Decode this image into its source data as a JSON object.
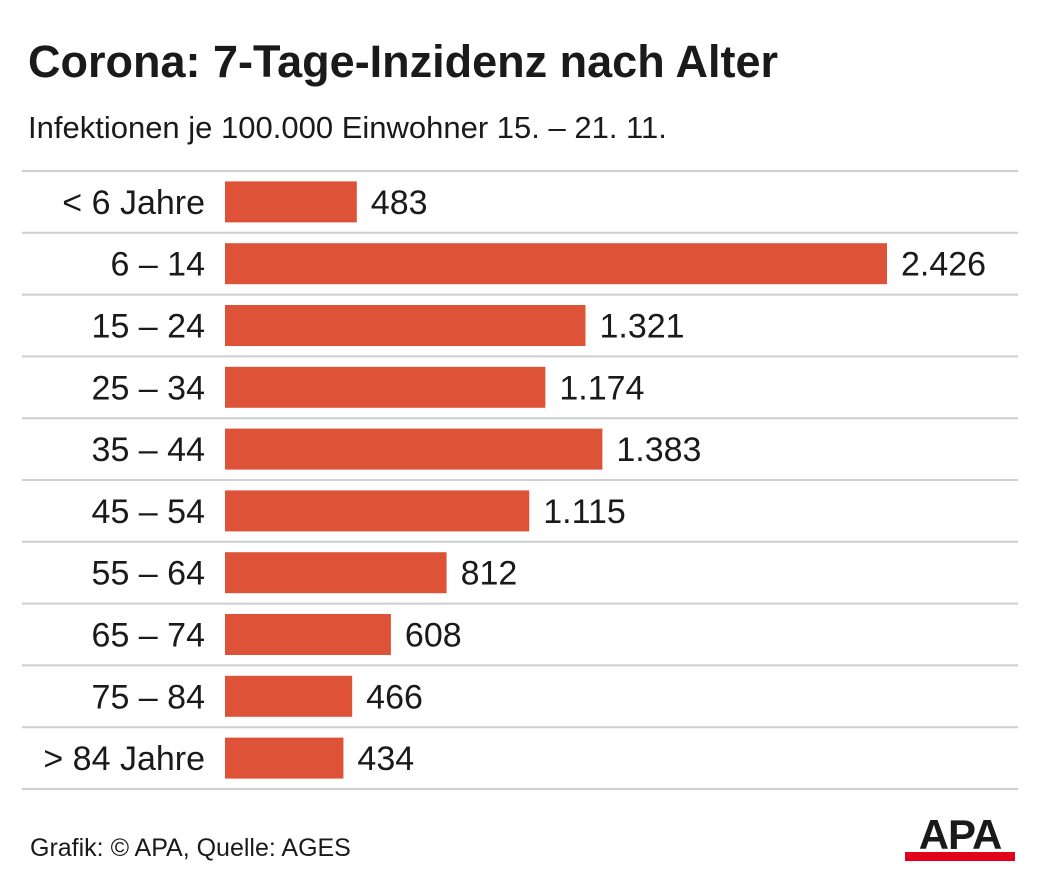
{
  "header": {
    "title": "Corona: 7-Tage-Inzidenz nach Alter",
    "subtitle": "Infektionen je 100.000 Einwohner 15. – 21. 11."
  },
  "footer": {
    "credit": "Grafik: © APA, Quelle: AGES",
    "logo_text": "APA"
  },
  "colors": {
    "bar": "#de5237",
    "text": "#1a1a1a",
    "grid": "#cfcfcf",
    "logo_bar": "#e3001b"
  },
  "chart_data": {
    "type": "bar",
    "orientation": "horizontal",
    "title": "Corona: 7-Tage-Inzidenz nach Alter",
    "subtitle": "Infektionen je 100.000 Einwohner 15. – 21. 11.",
    "categories": [
      "< 6 Jahre",
      "6 – 14",
      "15 – 24",
      "25 – 34",
      "35 – 44",
      "45 – 54",
      "55 – 64",
      "65 – 74",
      "75 – 84",
      "> 84 Jahre"
    ],
    "values": [
      483,
      2426,
      1321,
      1174,
      1383,
      1115,
      812,
      608,
      466,
      434
    ],
    "value_labels": [
      "483",
      "2.426",
      "1.321",
      "1.174",
      "1.383",
      "1.115",
      "812",
      "608",
      "466",
      "434"
    ],
    "xlim": [
      0,
      2426
    ],
    "grid": "row separators",
    "legend": "none"
  }
}
